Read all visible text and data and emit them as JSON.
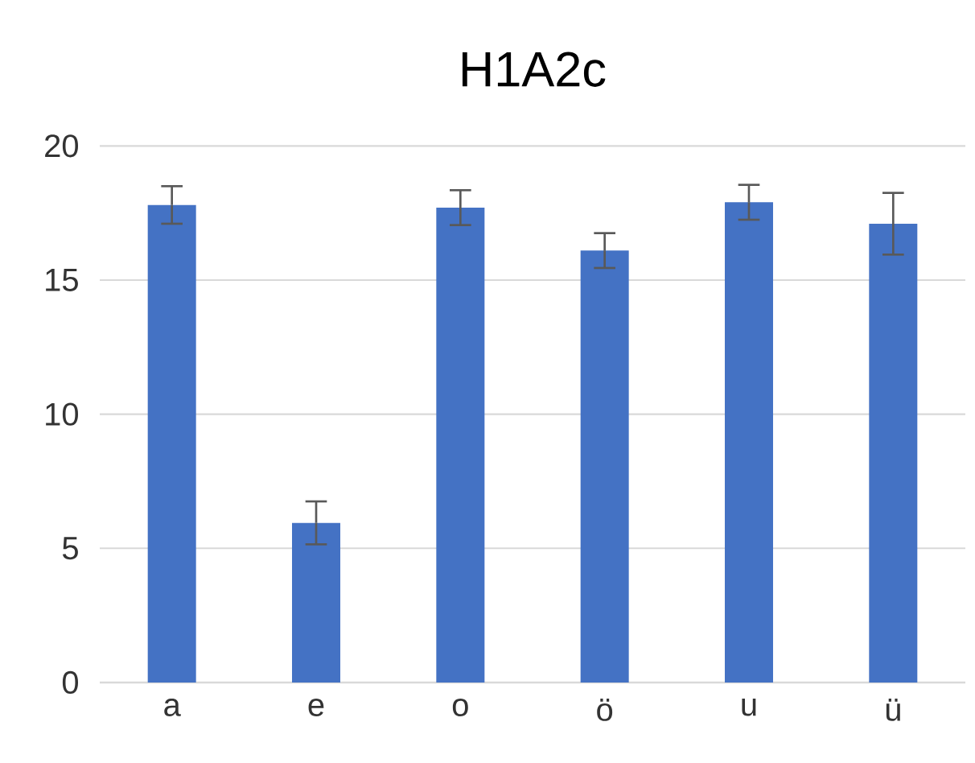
{
  "chart_data": {
    "type": "bar",
    "title": "H1A2c",
    "categories": [
      "a",
      "e",
      "o",
      "ö",
      "u",
      "ü"
    ],
    "values": [
      17.8,
      5.95,
      17.7,
      16.1,
      17.9,
      17.1
    ],
    "errors": [
      0.7,
      0.8,
      0.65,
      0.65,
      0.65,
      1.15
    ],
    "color": "#4472c4",
    "ylim": [
      0,
      20
    ],
    "yticks": [
      0,
      5,
      10,
      15,
      20
    ],
    "grid": "y"
  }
}
